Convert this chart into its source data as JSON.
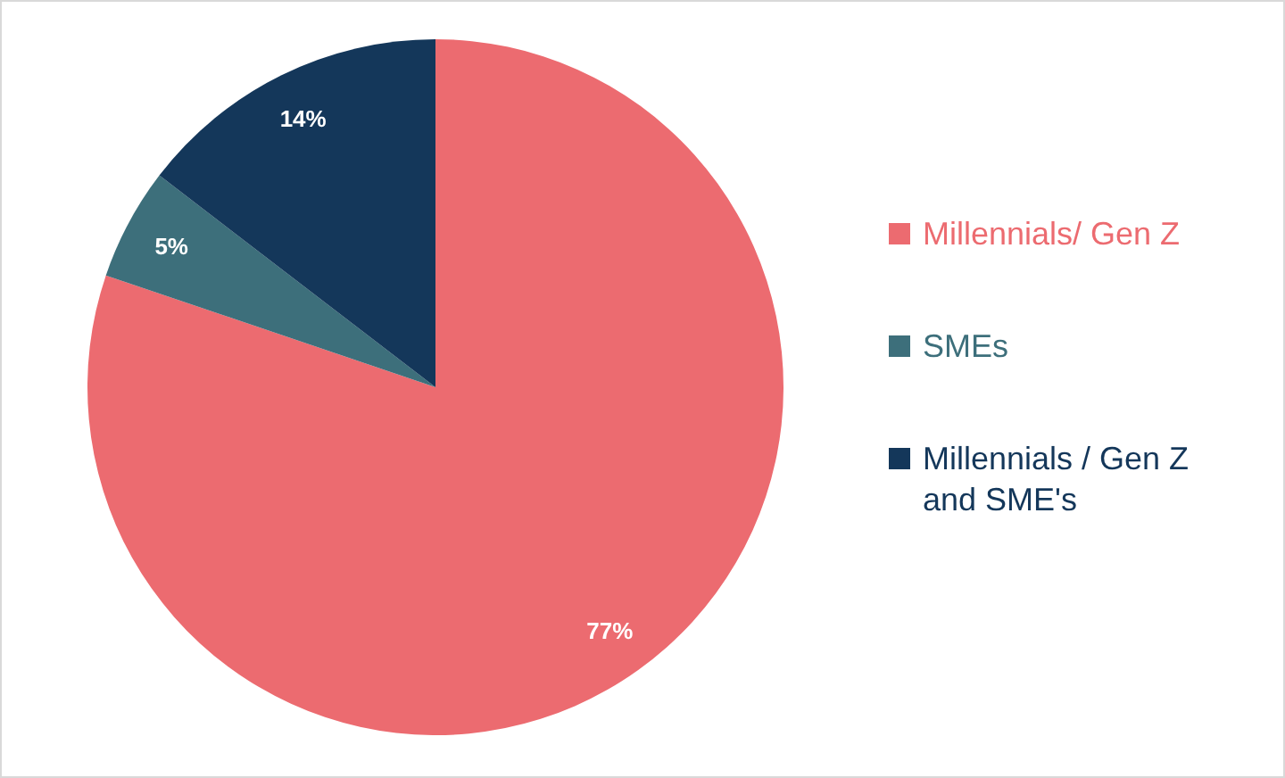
{
  "chart_data": {
    "type": "pie",
    "categories": [
      "Millennials/ Gen Z",
      "SMEs",
      "Millennials / Gen Z and SME's"
    ],
    "values": [
      77,
      5,
      14
    ],
    "colors": [
      "#ec6b70",
      "#3d6f7b",
      "#14375a"
    ],
    "value_labels": [
      "77%",
      "5%",
      "14%"
    ],
    "legend": "right"
  }
}
